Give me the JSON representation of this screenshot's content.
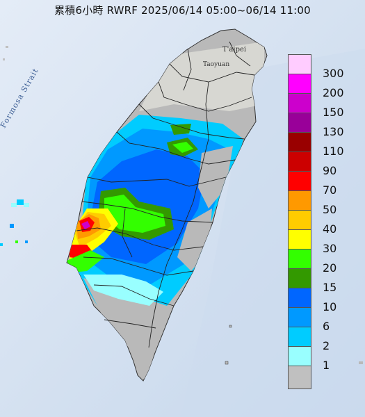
{
  "title": "累積6小時 RWRF 2025/06/14 05:00~06/14 11:00",
  "map_labels": {
    "strait": "Formosa Strait",
    "taipei": "T'aipei",
    "taoyuan": "Taoyuan"
  },
  "legend": {
    "levels": [
      {
        "label": "300",
        "color": "#ffccff"
      },
      {
        "label": "200",
        "color": "#ff00ff"
      },
      {
        "label": "150",
        "color": "#cc00cc"
      },
      {
        "label": "130",
        "color": "#990099"
      },
      {
        "label": "110",
        "color": "#990000"
      },
      {
        "label": "90",
        "color": "#cc0000"
      },
      {
        "label": "70",
        "color": "#ff0000"
      },
      {
        "label": "50",
        "color": "#ff9900"
      },
      {
        "label": "40",
        "color": "#ffcc00"
      },
      {
        "label": "30",
        "color": "#ffff00"
      },
      {
        "label": "20",
        "color": "#33ff00"
      },
      {
        "label": "15",
        "color": "#339900"
      },
      {
        "label": "10",
        "color": "#0066ff"
      },
      {
        "label": "6",
        "color": "#0099ff"
      },
      {
        "label": "2",
        "color": "#00ccff"
      },
      {
        "label": "1",
        "color": "#99ffff"
      },
      {
        "label": "",
        "color": "#c0c0c0"
      }
    ]
  }
}
